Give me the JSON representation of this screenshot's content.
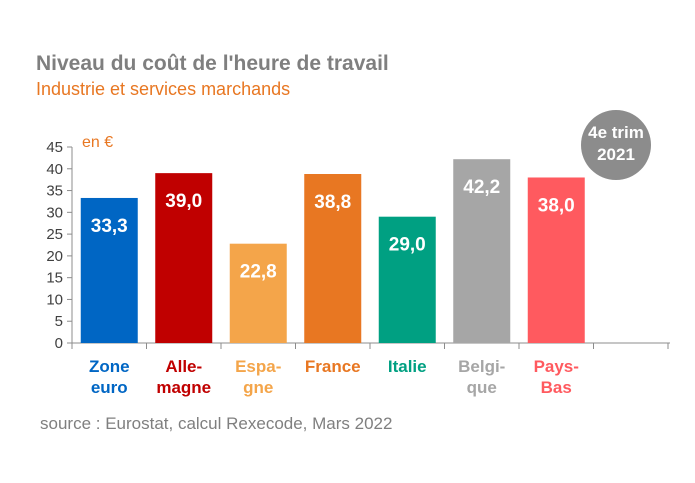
{
  "header": {
    "title": "Niveau du coût de l'heure de travail",
    "subtitle": "Industrie et services marchands"
  },
  "source": "source : Eurostat, calcul Rexecode, Mars 2022",
  "badge": {
    "line1": "4e trim",
    "line2": "2021",
    "color": "#8c8c8c"
  },
  "chart_data": {
    "type": "bar",
    "unit_label": "en €",
    "categories": [
      {
        "lines": [
          "Zone",
          "euro"
        ],
        "color": "#0066c4"
      },
      {
        "lines": [
          "Alle-",
          "magne"
        ],
        "color": "#c00000"
      },
      {
        "lines": [
          "Espa-",
          "gne"
        ],
        "color": "#f4a54a"
      },
      {
        "lines": [
          "France"
        ],
        "color": "#e87722"
      },
      {
        "lines": [
          "Italie"
        ],
        "color": "#00a082"
      },
      {
        "lines": [
          "Belgi-",
          "que"
        ],
        "color": "#a6a6a6"
      },
      {
        "lines": [
          "Pays-",
          "Bas"
        ],
        "color": "#ff5a5f"
      }
    ],
    "values": [
      33.3,
      39.0,
      22.8,
      38.8,
      29.0,
      42.2,
      38.0
    ],
    "value_labels": [
      "33,3",
      "39,0",
      "22,8",
      "38,8",
      "29,0",
      "42,2",
      "38,0"
    ],
    "ylim": [
      0,
      45
    ],
    "yticks": [
      0,
      5,
      10,
      15,
      20,
      25,
      30,
      35,
      40,
      45
    ],
    "grid": false
  }
}
